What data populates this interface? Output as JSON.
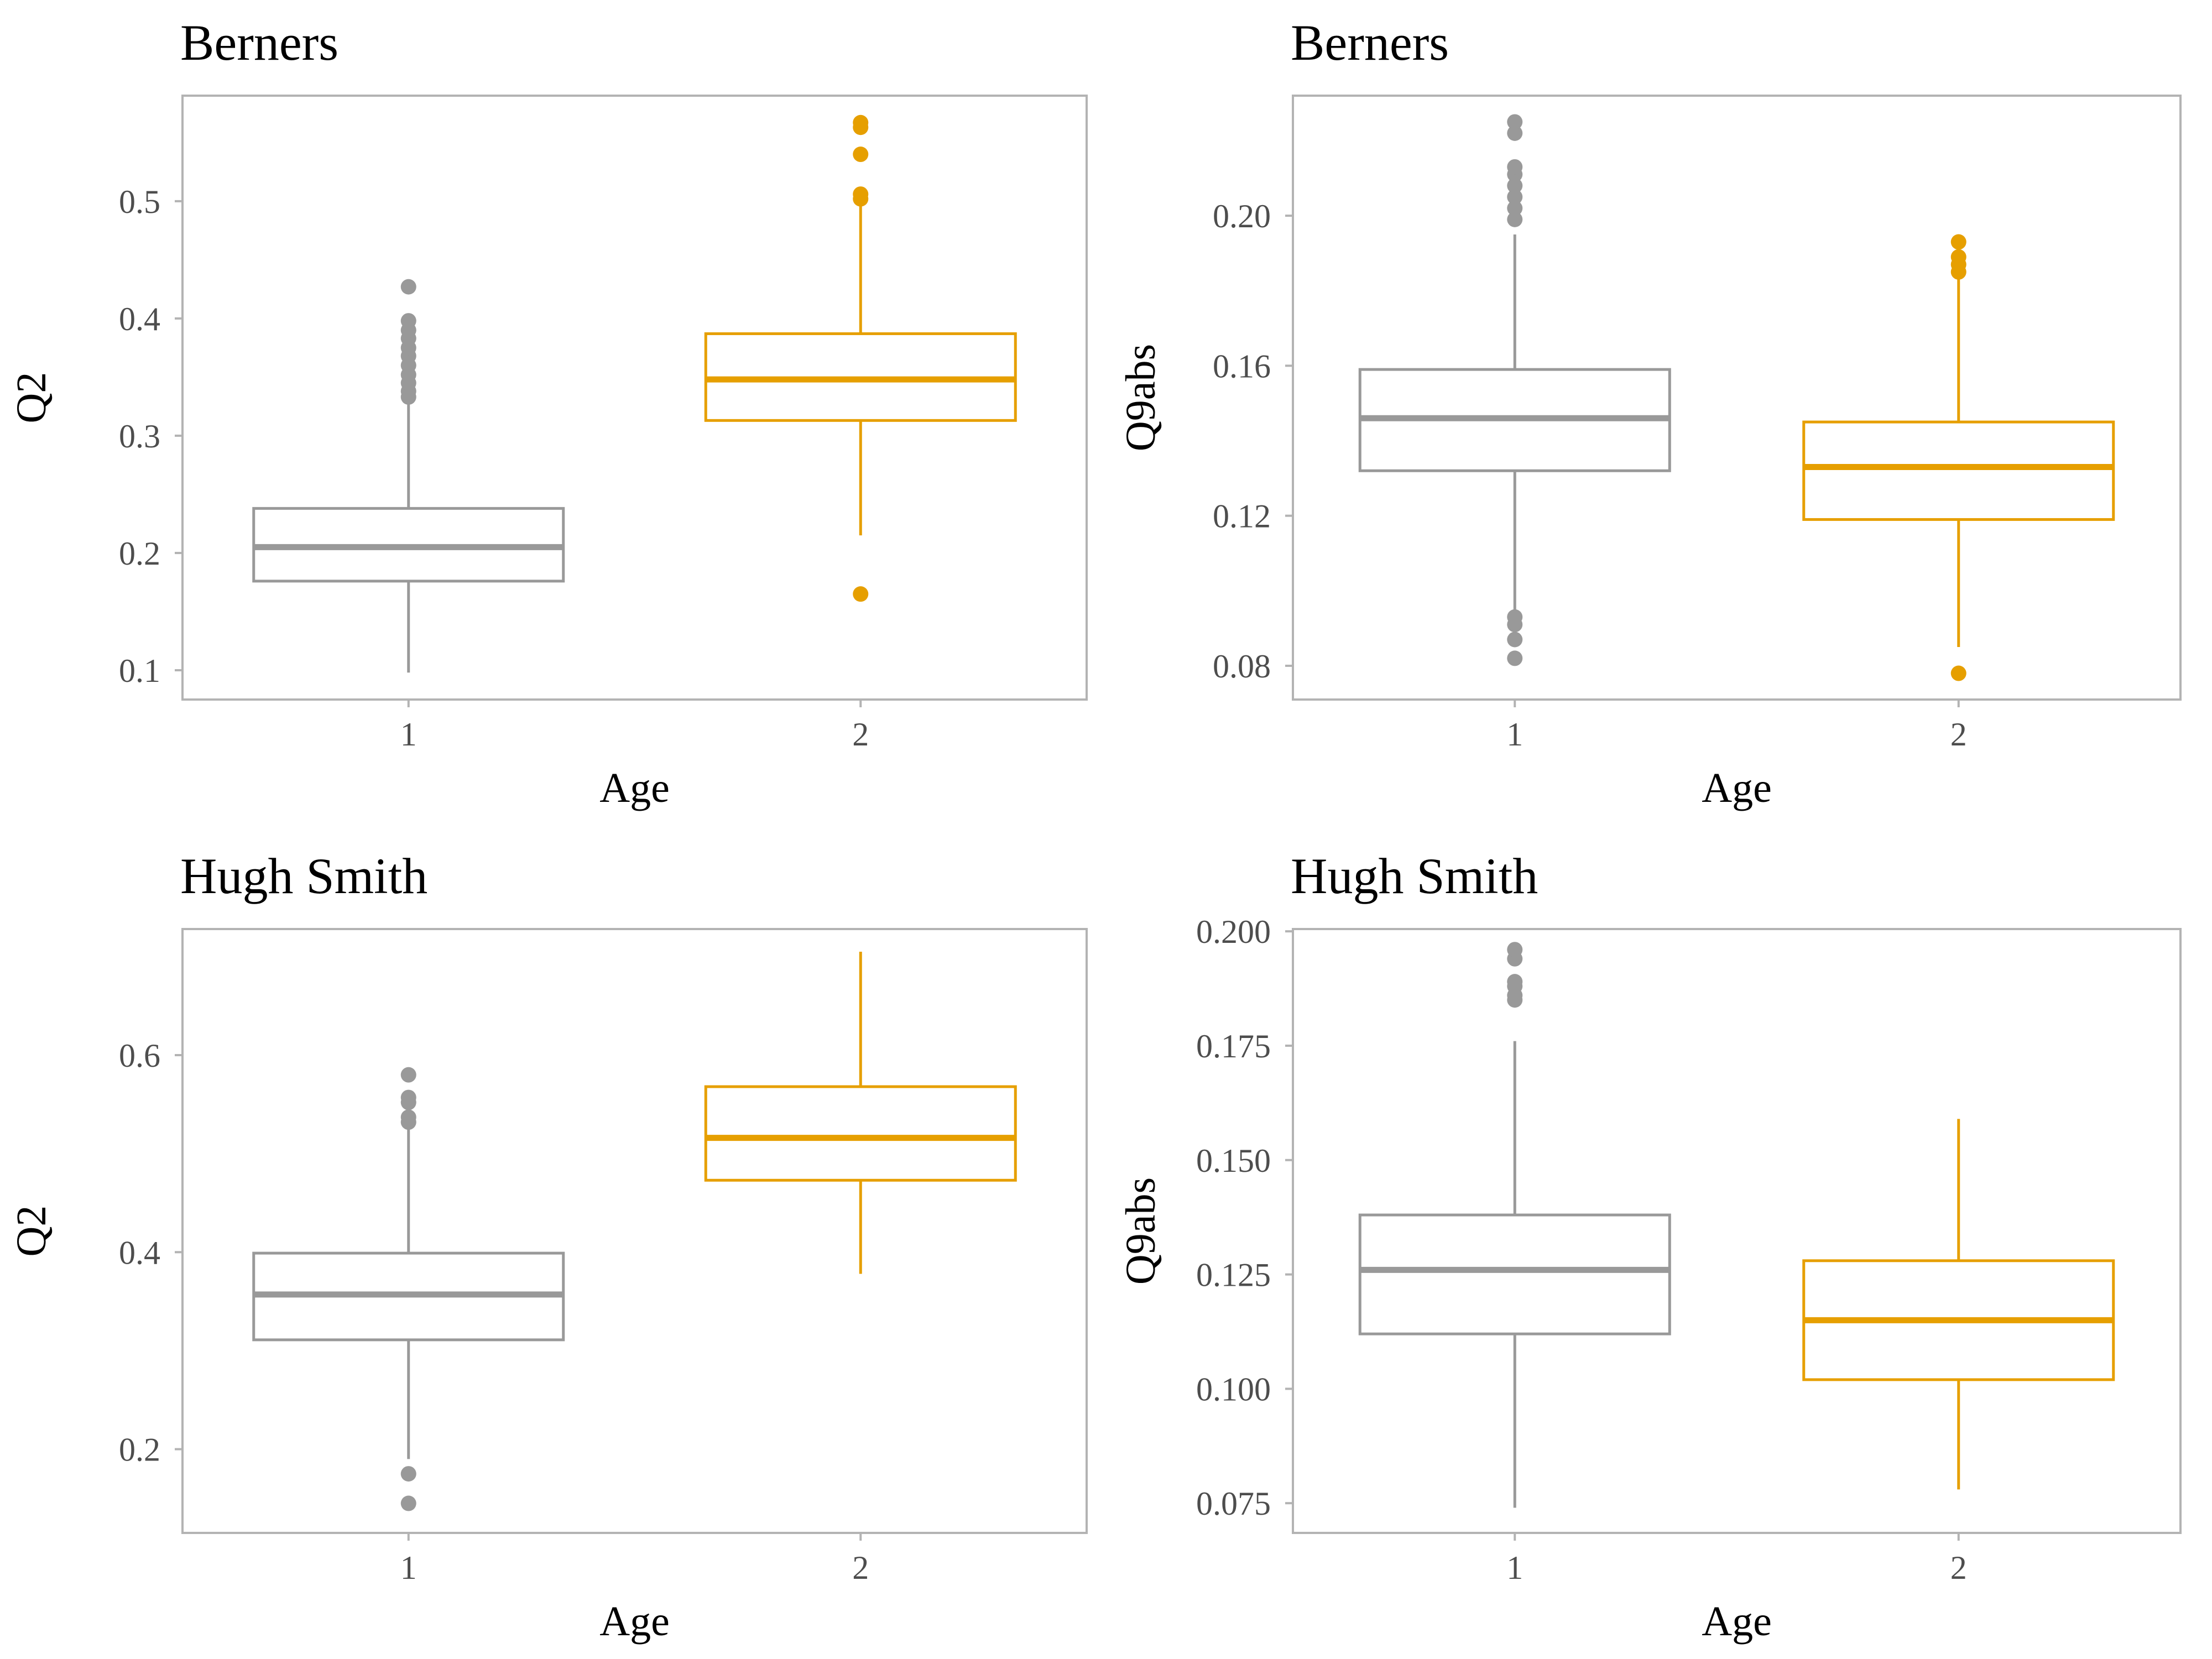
{
  "chart_data": [
    {
      "type": "boxplot",
      "title": "Berners",
      "xlabel": "Age",
      "ylabel": "Q2",
      "categories": [
        "1",
        "2"
      ],
      "ylim": [
        0.075,
        0.59
      ],
      "yticks": [
        0.1,
        0.2,
        0.3,
        0.4,
        0.5
      ],
      "tick_labels": [
        "0.1",
        "0.2",
        "0.3",
        "0.4",
        "0.5"
      ],
      "grid": false,
      "boxes": [
        {
          "category": "1",
          "whisker_low": 0.098,
          "q1": 0.176,
          "median": 0.205,
          "q3": 0.238,
          "whisker_high": 0.33,
          "outliers": [
            0.333,
            0.338,
            0.345,
            0.352,
            0.36,
            0.368,
            0.375,
            0.383,
            0.39,
            0.398,
            0.427
          ]
        },
        {
          "category": "2",
          "whisker_low": 0.215,
          "q1": 0.313,
          "median": 0.348,
          "q3": 0.387,
          "whisker_high": 0.497,
          "outliers": [
            0.165,
            0.502,
            0.506,
            0.54,
            0.563,
            0.567
          ]
        }
      ]
    },
    {
      "type": "boxplot",
      "title": "Berners",
      "xlabel": "Age",
      "ylabel": "Q9abs",
      "categories": [
        "1",
        "2"
      ],
      "ylim": [
        0.071,
        0.232
      ],
      "yticks": [
        0.08,
        0.12,
        0.16,
        0.2
      ],
      "tick_labels": [
        "0.08",
        "0.12",
        "0.16",
        "0.20"
      ],
      "grid": false,
      "boxes": [
        {
          "category": "1",
          "whisker_low": 0.094,
          "q1": 0.132,
          "median": 0.146,
          "q3": 0.159,
          "whisker_high": 0.195,
          "outliers": [
            0.082,
            0.087,
            0.091,
            0.093,
            0.199,
            0.202,
            0.205,
            0.208,
            0.211,
            0.213,
            0.222,
            0.225
          ]
        },
        {
          "category": "2",
          "whisker_low": 0.085,
          "q1": 0.119,
          "median": 0.133,
          "q3": 0.145,
          "whisker_high": 0.184,
          "outliers": [
            0.078,
            0.185,
            0.187,
            0.189,
            0.193
          ]
        }
      ]
    },
    {
      "type": "boxplot",
      "title": "Hugh Smith",
      "xlabel": "Age",
      "ylabel": "Q2",
      "categories": [
        "1",
        "2"
      ],
      "ylim": [
        0.115,
        0.728
      ],
      "yticks": [
        0.2,
        0.4,
        0.6
      ],
      "tick_labels": [
        "0.2",
        "0.4",
        "0.6"
      ],
      "grid": false,
      "boxes": [
        {
          "category": "1",
          "whisker_low": 0.19,
          "q1": 0.311,
          "median": 0.357,
          "q3": 0.399,
          "whisker_high": 0.528,
          "outliers": [
            0.145,
            0.175,
            0.532,
            0.537,
            0.552,
            0.557,
            0.58
          ]
        },
        {
          "category": "2",
          "whisker_low": 0.378,
          "q1": 0.473,
          "median": 0.516,
          "q3": 0.568,
          "whisker_high": 0.705,
          "outliers": []
        }
      ]
    },
    {
      "type": "boxplot",
      "title": "Hugh Smith",
      "xlabel": "Age",
      "ylabel": "Q9abs",
      "categories": [
        "1",
        "2"
      ],
      "ylim": [
        0.0685,
        0.2005
      ],
      "yticks": [
        0.075,
        0.1,
        0.125,
        0.15,
        0.175,
        0.2
      ],
      "tick_labels": [
        "0.075",
        "0.100",
        "0.125",
        "0.150",
        "0.175",
        "0.200"
      ],
      "grid": false,
      "boxes": [
        {
          "category": "1",
          "whisker_low": 0.074,
          "q1": 0.112,
          "median": 0.126,
          "q3": 0.138,
          "whisker_high": 0.176,
          "outliers": [
            0.185,
            0.186,
            0.188,
            0.189,
            0.194,
            0.196
          ]
        },
        {
          "category": "2",
          "whisker_low": 0.078,
          "q1": 0.102,
          "median": 0.115,
          "q3": 0.128,
          "whisker_high": 0.159,
          "outliers": []
        }
      ]
    }
  ],
  "colors": {
    "age_1": "#999999",
    "age_2": "#e69f00",
    "panel_border": "#b3b3b3",
    "tick_label": "#4d4d4d"
  }
}
